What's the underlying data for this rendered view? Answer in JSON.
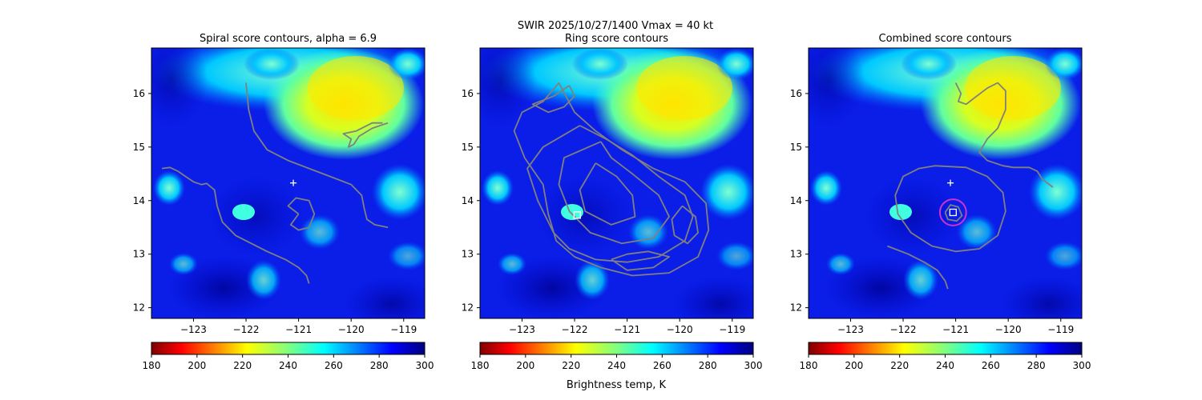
{
  "figure": {
    "suptitle_line1": "SWIR  2025/10/27/1400    Vmax = 40 kt",
    "colorbar_label": "Brightness temp, K"
  },
  "chart_data": [
    {
      "type": "heatmap",
      "title": "Spiral score contours, alpha =  6.9",
      "xlim": [
        -123.8,
        -118.6
      ],
      "ylim": [
        11.8,
        16.85
      ],
      "x_ticks": [
        -123,
        -122,
        -121,
        -120,
        -119
      ],
      "y_ticks": [
        12,
        13,
        14,
        15,
        16
      ],
      "x_tick_labels": [
        "−123",
        "−122",
        "−121",
        "−120",
        "−119"
      ],
      "y_tick_labels": [
        "12",
        "13",
        "14",
        "15",
        "16"
      ],
      "contour_color": "#808080",
      "markers": [
        {
          "type": "plus",
          "x": -121.1,
          "y": 14.33,
          "color": "#ffffff"
        }
      ],
      "contours": [
        [
          [
            -122.0,
            16.2
          ],
          [
            -121.95,
            15.7
          ],
          [
            -121.85,
            15.3
          ],
          [
            -121.6,
            14.95
          ],
          [
            -121.2,
            14.75
          ],
          [
            -120.8,
            14.6
          ],
          [
            -120.4,
            14.45
          ],
          [
            -120.0,
            14.3
          ],
          [
            -119.8,
            14.1
          ],
          [
            -119.75,
            13.85
          ],
          [
            -119.7,
            13.65
          ],
          [
            -119.55,
            13.55
          ],
          [
            -119.3,
            13.5
          ]
        ],
        [
          [
            -123.6,
            14.6
          ],
          [
            -123.45,
            14.62
          ],
          [
            -123.3,
            14.55
          ],
          [
            -123.15,
            14.45
          ],
          [
            -123.0,
            14.35
          ],
          [
            -122.85,
            14.3
          ],
          [
            -122.75,
            14.32
          ],
          [
            -122.6,
            14.2
          ],
          [
            -122.55,
            13.9
          ],
          [
            -122.45,
            13.6
          ],
          [
            -122.2,
            13.35
          ],
          [
            -121.9,
            13.2
          ],
          [
            -121.6,
            13.05
          ],
          [
            -121.25,
            12.9
          ],
          [
            -121.0,
            12.75
          ],
          [
            -120.85,
            12.6
          ],
          [
            -120.8,
            12.45
          ]
        ],
        [
          [
            -121.0,
            13.75
          ],
          [
            -121.2,
            13.9
          ],
          [
            -121.05,
            14.05
          ],
          [
            -120.8,
            14.0
          ],
          [
            -120.7,
            13.75
          ],
          [
            -120.8,
            13.5
          ],
          [
            -121.0,
            13.45
          ],
          [
            -121.15,
            13.55
          ],
          [
            -121.0,
            13.75
          ]
        ],
        [
          [
            -119.3,
            15.45
          ],
          [
            -119.6,
            15.35
          ],
          [
            -119.85,
            15.2
          ],
          [
            -119.95,
            15.05
          ],
          [
            -120.05,
            15.0
          ],
          [
            -120.0,
            15.15
          ],
          [
            -120.15,
            15.25
          ],
          [
            -119.9,
            15.3
          ],
          [
            -119.6,
            15.45
          ],
          [
            -119.4,
            15.45
          ]
        ]
      ]
    },
    {
      "type": "heatmap",
      "title": "Ring score contours",
      "xlim": [
        -123.8,
        -118.6
      ],
      "ylim": [
        11.8,
        16.85
      ],
      "x_ticks": [
        -123,
        -122,
        -121,
        -120,
        -119
      ],
      "y_ticks": [
        12,
        13,
        14,
        15,
        16
      ],
      "x_tick_labels": [
        "−123",
        "−122",
        "−121",
        "−120",
        "−119"
      ],
      "y_tick_labels": [
        "12",
        "13",
        "14",
        "15",
        "16"
      ],
      "contour_color": "#808080",
      "markers": [
        {
          "type": "square",
          "x": -121.95,
          "y": 13.73,
          "color": "#ffffff"
        }
      ],
      "contours": [
        [
          [
            -122.3,
            16.2
          ],
          [
            -122.6,
            15.85
          ],
          [
            -123.0,
            15.65
          ],
          [
            -123.15,
            15.3
          ],
          [
            -122.95,
            14.8
          ],
          [
            -122.6,
            14.3
          ],
          [
            -122.5,
            13.75
          ],
          [
            -122.35,
            13.25
          ],
          [
            -122.0,
            12.95
          ],
          [
            -121.5,
            12.75
          ],
          [
            -120.9,
            12.6
          ],
          [
            -120.2,
            12.65
          ],
          [
            -119.65,
            12.95
          ],
          [
            -119.45,
            13.45
          ],
          [
            -119.5,
            13.95
          ],
          [
            -119.9,
            14.35
          ],
          [
            -120.5,
            14.6
          ],
          [
            -121.1,
            14.95
          ],
          [
            -121.6,
            15.3
          ],
          [
            -122.0,
            15.65
          ],
          [
            -122.3,
            16.2
          ]
        ],
        [
          [
            -121.9,
            15.4
          ],
          [
            -122.6,
            15.0
          ],
          [
            -122.9,
            14.6
          ],
          [
            -122.7,
            14.0
          ],
          [
            -122.4,
            13.4
          ],
          [
            -122.1,
            13.1
          ],
          [
            -121.6,
            12.9
          ],
          [
            -121.0,
            12.85
          ],
          [
            -120.4,
            12.95
          ],
          [
            -119.9,
            13.25
          ],
          [
            -119.75,
            13.7
          ],
          [
            -119.9,
            14.1
          ],
          [
            -120.4,
            14.45
          ],
          [
            -120.9,
            14.85
          ],
          [
            -121.4,
            15.15
          ],
          [
            -121.9,
            15.4
          ]
        ],
        [
          [
            -121.5,
            15.1
          ],
          [
            -122.2,
            14.8
          ],
          [
            -122.3,
            14.3
          ],
          [
            -122.1,
            13.8
          ],
          [
            -121.7,
            13.4
          ],
          [
            -121.1,
            13.2
          ],
          [
            -120.5,
            13.3
          ],
          [
            -120.2,
            13.7
          ],
          [
            -120.4,
            14.1
          ],
          [
            -120.9,
            14.5
          ],
          [
            -121.3,
            14.8
          ],
          [
            -121.5,
            15.1
          ]
        ],
        [
          [
            -121.6,
            14.7
          ],
          [
            -121.9,
            14.2
          ],
          [
            -121.8,
            13.8
          ],
          [
            -121.3,
            13.55
          ],
          [
            -120.85,
            13.7
          ],
          [
            -120.9,
            14.1
          ],
          [
            -121.2,
            14.45
          ],
          [
            -121.6,
            14.7
          ]
        ],
        [
          [
            -122.1,
            16.15
          ],
          [
            -122.4,
            15.95
          ],
          [
            -122.8,
            15.8
          ],
          [
            -122.5,
            15.65
          ],
          [
            -122.2,
            15.75
          ],
          [
            -122.0,
            15.95
          ],
          [
            -122.1,
            16.15
          ]
        ],
        [
          [
            -121.3,
            12.9
          ],
          [
            -121.0,
            12.7
          ],
          [
            -120.5,
            12.75
          ],
          [
            -120.2,
            12.95
          ],
          [
            -120.6,
            13.05
          ],
          [
            -121.0,
            13.0
          ],
          [
            -121.3,
            12.9
          ]
        ],
        [
          [
            -119.95,
            13.9
          ],
          [
            -119.7,
            13.7
          ],
          [
            -119.65,
            13.4
          ],
          [
            -119.85,
            13.2
          ],
          [
            -120.1,
            13.35
          ],
          [
            -120.15,
            13.65
          ],
          [
            -119.95,
            13.9
          ]
        ]
      ]
    },
    {
      "type": "heatmap",
      "title": "Combined score contours",
      "xlim": [
        -123.8,
        -118.6
      ],
      "ylim": [
        11.8,
        16.85
      ],
      "x_ticks": [
        -123,
        -122,
        -121,
        -120,
        -119
      ],
      "y_ticks": [
        12,
        13,
        14,
        15,
        16
      ],
      "x_tick_labels": [
        "−123",
        "−122",
        "−121",
        "−120",
        "−119"
      ],
      "y_tick_labels": [
        "12",
        "13",
        "14",
        "15",
        "16"
      ],
      "contour_color": "#808080",
      "markers": [
        {
          "type": "plus",
          "x": -121.1,
          "y": 14.33,
          "color": "#ffffff"
        },
        {
          "type": "square",
          "x": -121.05,
          "y": 13.78,
          "color": "#ffffff"
        },
        {
          "type": "circle",
          "x": -121.05,
          "y": 13.78,
          "radius_deg": 0.25,
          "color": "#cc33cc"
        }
      ],
      "contours": [
        [
          [
            -121.0,
            16.2
          ],
          [
            -120.9,
            16.0
          ],
          [
            -120.95,
            15.85
          ],
          [
            -120.8,
            15.8
          ],
          [
            -120.6,
            15.95
          ],
          [
            -120.4,
            16.1
          ],
          [
            -120.2,
            16.2
          ],
          [
            -120.05,
            16.05
          ],
          [
            -120.05,
            15.7
          ],
          [
            -120.2,
            15.35
          ],
          [
            -120.4,
            15.15
          ],
          [
            -120.55,
            14.9
          ],
          [
            -120.4,
            14.75
          ],
          [
            -120.1,
            14.65
          ],
          [
            -119.9,
            14.62
          ],
          [
            -119.6,
            14.62
          ],
          [
            -119.45,
            14.55
          ],
          [
            -119.35,
            14.4
          ],
          [
            -119.15,
            14.25
          ]
        ],
        [
          [
            -121.4,
            14.65
          ],
          [
            -121.7,
            14.6
          ],
          [
            -122.0,
            14.45
          ],
          [
            -122.15,
            14.1
          ],
          [
            -122.1,
            13.75
          ],
          [
            -121.85,
            13.4
          ],
          [
            -121.45,
            13.15
          ],
          [
            -121.0,
            13.05
          ],
          [
            -120.55,
            13.1
          ],
          [
            -120.2,
            13.35
          ],
          [
            -120.05,
            13.8
          ],
          [
            -120.1,
            14.15
          ],
          [
            -120.4,
            14.45
          ],
          [
            -120.8,
            14.62
          ],
          [
            -121.4,
            14.65
          ]
        ],
        [
          [
            -122.3,
            13.15
          ],
          [
            -121.9,
            13.0
          ],
          [
            -121.6,
            12.85
          ],
          [
            -121.35,
            12.7
          ],
          [
            -121.2,
            12.5
          ],
          [
            -121.15,
            12.35
          ]
        ],
        [
          [
            -121.2,
            13.78
          ],
          [
            -121.1,
            13.92
          ],
          [
            -120.95,
            13.88
          ],
          [
            -120.88,
            13.72
          ],
          [
            -120.98,
            13.62
          ],
          [
            -121.15,
            13.65
          ],
          [
            -121.2,
            13.78
          ]
        ]
      ]
    }
  ],
  "colorbar": {
    "min": 180,
    "max": 300,
    "ticks": [
      180,
      200,
      220,
      240,
      260,
      280,
      300
    ],
    "colormap": "jet_r"
  }
}
